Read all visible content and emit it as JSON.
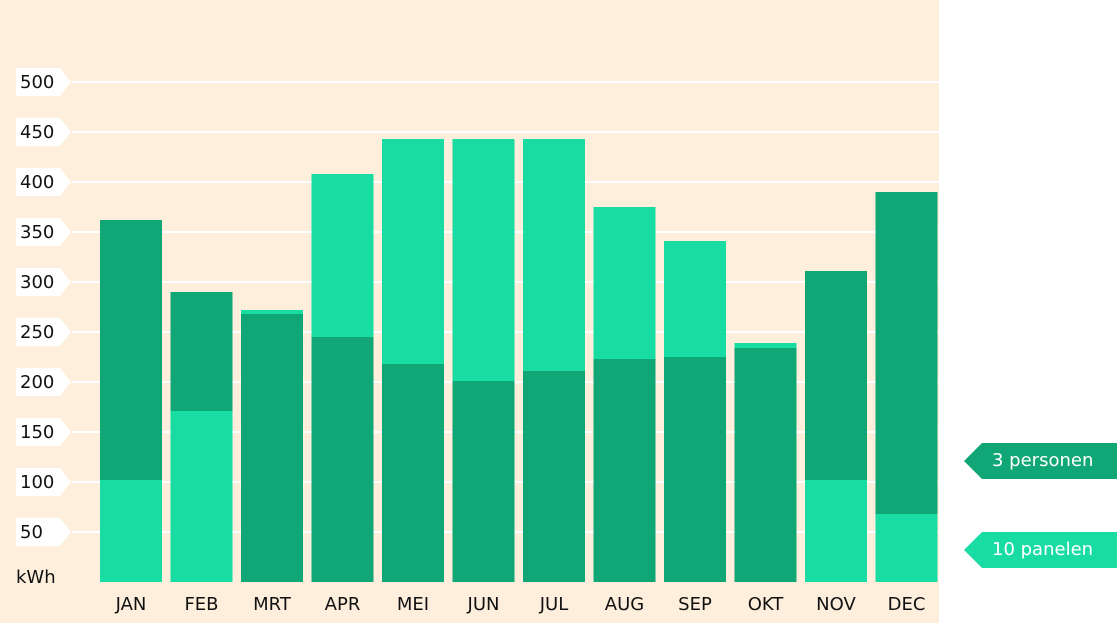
{
  "colors": {
    "background": "#fdefdc",
    "consumption": "#10a676",
    "production": "#19dca2",
    "grid": "#ffffff",
    "label_box": "#ffffff",
    "text": "#111111"
  },
  "chart_data": {
    "type": "bar",
    "ylabel": "kWh",
    "ylim": [
      0,
      500
    ],
    "yticks": [
      50,
      100,
      150,
      200,
      250,
      300,
      350,
      400,
      450,
      500
    ],
    "grid": true,
    "legend_position": "right",
    "categories": [
      "JAN",
      "FEB",
      "MRT",
      "APR",
      "MEI",
      "JUN",
      "JUL",
      "AUG",
      "SEP",
      "OKT",
      "NOV",
      "DEC"
    ],
    "series": [
      {
        "name": "3 personen",
        "color": "#10a676",
        "values": [
          362,
          290,
          268,
          245,
          218,
          201,
          211,
          223,
          225,
          234,
          311,
          390
        ]
      },
      {
        "name": "10 panelen",
        "color": "#19dca2",
        "values": [
          102,
          171,
          272,
          408,
          443,
          443,
          443,
          375,
          341,
          239,
          102,
          68
        ]
      }
    ]
  }
}
